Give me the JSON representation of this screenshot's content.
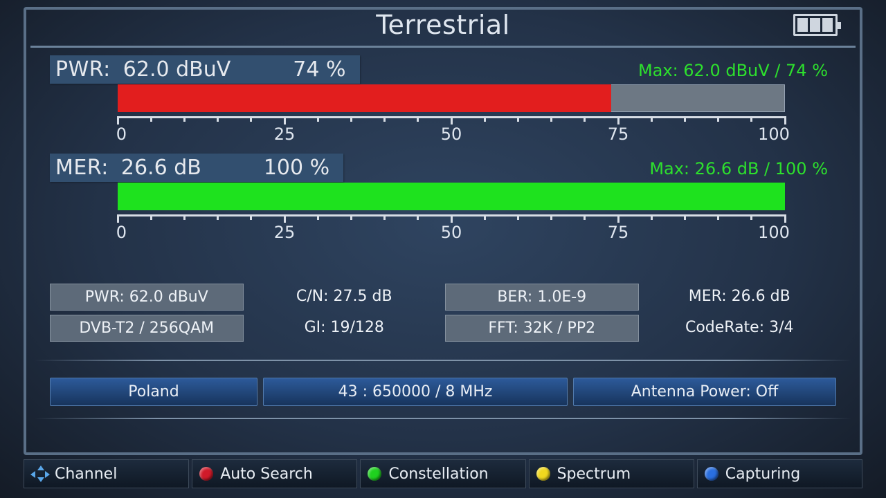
{
  "title": "Terrestrial",
  "battery": {
    "cells": 3
  },
  "axis": {
    "min": 0,
    "max": 100,
    "major_step": 25,
    "minor_step": 5
  },
  "colors": {
    "bar_track": "#6d7884",
    "pwr_fill": "#e21e1e",
    "mer_fill": "#1ee21e",
    "max_text": "#2de02d"
  },
  "pwr": {
    "name": "PWR:",
    "value": "62.0 dBuV",
    "percent": "74 %",
    "fill_pct": 74,
    "max_text": "Max: 62.0 dBuV / 74 %"
  },
  "mer": {
    "name": "MER:",
    "value": "26.6 dB",
    "percent": "100 %",
    "fill_pct": 100,
    "max_text": "Max: 26.6 dB  / 100 %"
  },
  "info": {
    "r1c1": "PWR: 62.0 dBuV",
    "r1c2": "C/N: 27.5 dB",
    "r1c3": "BER: 1.0E-9",
    "r1c4": "MER: 26.6 dB",
    "r2c1": "DVB-T2 / 256QAM",
    "r2c2": "GI: 19/128",
    "r2c3": "FFT: 32K / PP2",
    "r2c4": "CodeRate: 3/4"
  },
  "status": {
    "country": "Poland",
    "freq": "43 : 650000 / 8 MHz",
    "antenna": "Antenna Power: Off"
  },
  "footer": {
    "channel": {
      "label": "Channel"
    },
    "auto_search": {
      "label": "Auto Search",
      "dot": "#d11a2a"
    },
    "constellation": {
      "label": "Constellation",
      "dot": "#1fd11f"
    },
    "spectrum": {
      "label": "Spectrum",
      "dot": "#f0d81f"
    },
    "capturing": {
      "label": "Capturing",
      "dot": "#2a6fe0"
    }
  }
}
